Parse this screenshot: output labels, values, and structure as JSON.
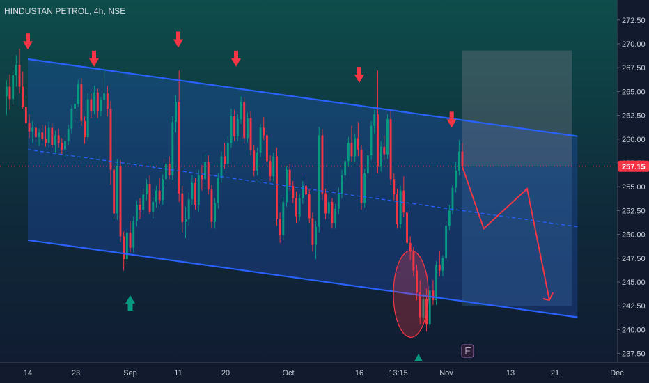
{
  "header": {
    "title": "HINDUSTAN PETROL, 4h, NSE"
  },
  "price_axis": {
    "ticks": [
      "272.50",
      "270.00",
      "267.50",
      "265.00",
      "262.50",
      "260.00",
      "257.50",
      "255.00",
      "252.50",
      "250.00",
      "247.50",
      "245.00",
      "242.50",
      "240.00",
      "237.50"
    ],
    "current_price_label": "257.15"
  },
  "time_axis": {
    "ticks": [
      "14",
      "23",
      "Sep",
      "11",
      "20",
      "Oct",
      "16",
      "13:15",
      "Nov",
      "13",
      "21",
      "Dec"
    ]
  },
  "colors": {
    "background_top": "#0e4d4b",
    "background_bottom": "#101a30",
    "channel": "#2962ff",
    "up_candle": "#089981",
    "down_candle": "#f23645",
    "marker_down": "#f23645",
    "marker_up": "#089981",
    "price_line": "#f23645"
  },
  "icons": {
    "earnings": "earnings-E-icon",
    "down_arrow": "arrow-down-icon",
    "up_arrow": "arrow-up-icon"
  },
  "chart_data": {
    "type": "candlestick",
    "symbol": "HINDUSTAN PETROL",
    "interval": "4h",
    "exchange": "NSE",
    "ylim": [
      236.5,
      274
    ],
    "current_price": 257.15,
    "channel": {
      "upper": [
        [
          "Aug 14",
          268.4
        ],
        [
          "Nov 25",
          260.3
        ]
      ],
      "lower": [
        [
          "Aug 14",
          249.4
        ],
        [
          "Nov 25",
          241.3
        ]
      ],
      "mid": [
        [
          "Aug 14",
          258.9
        ],
        [
          "Nov 25",
          250.8
        ]
      ]
    },
    "resistance_touches": [
      "Aug 14",
      "Aug 26",
      "Sep 11",
      "Sep 22",
      "Oct 16",
      "Nov 2"
    ],
    "support_touch": "Sep 1",
    "highlighted_low_zone": {
      "date_range": [
        "Oct 23",
        "Oct 29"
      ],
      "price_range": [
        239.2,
        248.3
      ]
    },
    "forecast_path": [
      [
        "Nov 4",
        257.1
      ],
      [
        "Nov 8",
        250.6
      ],
      [
        "Nov 16",
        254.8
      ],
      [
        "Nov 20",
        243.1
      ]
    ],
    "projection_box": {
      "date_range": [
        "Nov 4",
        "Nov 24"
      ],
      "price_range": [
        242.5,
        269.3
      ]
    },
    "candles": [
      [
        264.5,
        266.2,
        262.5,
        265.5
      ],
      [
        265.5,
        266.8,
        263.1,
        264.2
      ],
      [
        264.2,
        267.3,
        263.6,
        266.7
      ],
      [
        266.7,
        268.8,
        265.5,
        267.8
      ],
      [
        267.8,
        269.5,
        264.8,
        265.5
      ],
      [
        265.5,
        267.1,
        263.2,
        263.4
      ],
      [
        263.4,
        264.5,
        261.2,
        261.7
      ],
      [
        261.7,
        262.6,
        260.1,
        260.8
      ],
      [
        260.8,
        261.9,
        259.6,
        261.2
      ],
      [
        261.2,
        261.6,
        259.7,
        260.2
      ],
      [
        260.2,
        261.1,
        259.3,
        260.7
      ],
      [
        260.7,
        261.5,
        259.8,
        260.0
      ],
      [
        260.0,
        261.4,
        259.2,
        259.6
      ],
      [
        259.6,
        261.8,
        259.1,
        261.2
      ],
      [
        261.2,
        261.7,
        259.1,
        259.4
      ],
      [
        259.4,
        260.9,
        258.6,
        260.4
      ],
      [
        260.4,
        261.1,
        259.1,
        259.6
      ],
      [
        259.6,
        260.1,
        258.4,
        258.9
      ],
      [
        258.9,
        260.4,
        258.1,
        259.8
      ],
      [
        259.8,
        261.5,
        259.4,
        261.1
      ],
      [
        261.1,
        263.6,
        260.6,
        263.2
      ],
      [
        263.2,
        264.3,
        262.2,
        263.7
      ],
      [
        263.7,
        266.2,
        263.4,
        265.8
      ],
      [
        265.8,
        266.4,
        261.4,
        261.9
      ],
      [
        261.9,
        262.4,
        259.5,
        260.2
      ],
      [
        260.2,
        264.8,
        259.8,
        264.2
      ],
      [
        264.2,
        264.8,
        262.2,
        262.9
      ],
      [
        262.9,
        265.6,
        262.6,
        264.9
      ],
      [
        264.9,
        265.3,
        262.2,
        262.9
      ],
      [
        262.9,
        264.4,
        262.4,
        264.1
      ],
      [
        264.1,
        267.2,
        263.5,
        264.8
      ],
      [
        264.8,
        265.6,
        262.4,
        263.2
      ],
      [
        263.2,
        264.0,
        255.2,
        256.8
      ],
      [
        256.8,
        257.1,
        251.6,
        252.2
      ],
      [
        252.2,
        257.9,
        251.5,
        257.2
      ],
      [
        257.2,
        257.8,
        249.2,
        249.8
      ],
      [
        249.8,
        250.3,
        246.2,
        247.4
      ],
      [
        247.4,
        250.6,
        246.9,
        250.2
      ],
      [
        250.2,
        251.4,
        248.1,
        248.6
      ],
      [
        248.6,
        251.9,
        248.1,
        251.4
      ],
      [
        251.4,
        253.6,
        250.8,
        253.1
      ],
      [
        253.1,
        253.8,
        251.6,
        252.6
      ],
      [
        252.6,
        254.8,
        252.1,
        254.2
      ],
      [
        254.2,
        255.8,
        253.6,
        255.3
      ],
      [
        255.3,
        256.2,
        252.1,
        252.4
      ],
      [
        252.4,
        253.9,
        251.7,
        253.4
      ],
      [
        253.4,
        255.1,
        252.8,
        254.6
      ],
      [
        254.6,
        255.9,
        253.2,
        253.6
      ],
      [
        253.6,
        256.3,
        253.1,
        255.8
      ],
      [
        255.8,
        257.9,
        255.2,
        257.4
      ],
      [
        257.4,
        258.2,
        255.8,
        256.2
      ],
      [
        256.2,
        262.4,
        255.7,
        261.8
      ],
      [
        261.8,
        264.6,
        260.7,
        263.9
      ],
      [
        263.9,
        267.2,
        253.4,
        254.3
      ],
      [
        254.3,
        255.1,
        250.2,
        251.3
      ],
      [
        251.3,
        252.9,
        249.6,
        251.6
      ],
      [
        251.6,
        254.4,
        250.9,
        253.7
      ],
      [
        253.7,
        256.2,
        253.1,
        255.4
      ],
      [
        255.4,
        255.9,
        252.6,
        253.1
      ],
      [
        253.1,
        256.8,
        252.4,
        256.2
      ],
      [
        256.2,
        257.3,
        254.6,
        255.8
      ],
      [
        255.8,
        258.4,
        255.1,
        257.6
      ],
      [
        257.6,
        258.3,
        254.2,
        254.7
      ],
      [
        254.7,
        255.2,
        250.6,
        251.3
      ],
      [
        251.3,
        253.8,
        250.6,
        253.3
      ],
      [
        253.3,
        256.4,
        252.7,
        255.9
      ],
      [
        255.9,
        258.7,
        255.4,
        258.2
      ],
      [
        258.2,
        259.6,
        256.9,
        257.4
      ],
      [
        257.4,
        260.3,
        256.9,
        259.6
      ],
      [
        259.6,
        263.2,
        259.1,
        262.4
      ],
      [
        262.4,
        263.1,
        259.8,
        260.3
      ],
      [
        260.3,
        262.6,
        259.8,
        262.1
      ],
      [
        262.1,
        264.5,
        261.6,
        263.9
      ],
      [
        263.9,
        264.4,
        259.5,
        260.1
      ],
      [
        260.1,
        262.8,
        259.6,
        262.2
      ],
      [
        262.2,
        262.9,
        258.3,
        258.8
      ],
      [
        258.8,
        259.4,
        256.1,
        256.7
      ],
      [
        256.7,
        259.1,
        256.2,
        258.6
      ],
      [
        258.6,
        261.6,
        258.1,
        261.2
      ],
      [
        261.2,
        262.3,
        259.9,
        260.4
      ],
      [
        260.4,
        260.9,
        257.2,
        257.7
      ],
      [
        257.7,
        258.3,
        255.6,
        256.1
      ],
      [
        256.1,
        258.6,
        255.6,
        258.2
      ],
      [
        258.2,
        259.1,
        250.9,
        251.6
      ],
      [
        251.6,
        252.3,
        249.1,
        249.9
      ],
      [
        249.9,
        253.9,
        249.4,
        253.4
      ],
      [
        253.4,
        257.2,
        252.9,
        256.8
      ],
      [
        256.8,
        257.4,
        254.6,
        255.1
      ],
      [
        255.1,
        255.6,
        253.3,
        253.8
      ],
      [
        253.8,
        254.5,
        251.2,
        251.9
      ],
      [
        251.9,
        254.3,
        251.4,
        253.8
      ],
      [
        253.8,
        255.6,
        253.2,
        255.1
      ],
      [
        255.1,
        256.3,
        253.6,
        254.2
      ],
      [
        254.2,
        254.8,
        251.2,
        251.7
      ],
      [
        251.7,
        252.3,
        248.2,
        248.9
      ],
      [
        248.9,
        251.4,
        247.4,
        250.8
      ],
      [
        250.8,
        261.3,
        250.2,
        260.4
      ],
      [
        260.4,
        261.1,
        253.6,
        254.3
      ],
      [
        254.3,
        254.8,
        251.6,
        252.2
      ],
      [
        252.2,
        253.9,
        251.7,
        253.4
      ],
      [
        253.4,
        253.8,
        250.6,
        251.2
      ],
      [
        251.2,
        253.2,
        250.6,
        252.7
      ],
      [
        252.7,
        254.9,
        252.1,
        254.3
      ],
      [
        254.3,
        256.8,
        253.8,
        256.2
      ],
      [
        256.2,
        258.1,
        255.6,
        257.7
      ],
      [
        257.7,
        260.2,
        257.1,
        259.6
      ],
      [
        259.6,
        261.4,
        257.6,
        258.2
      ],
      [
        258.2,
        260.6,
        257.6,
        260.1
      ],
      [
        260.1,
        261.8,
        258.2,
        258.9
      ],
      [
        258.9,
        259.4,
        252.6,
        253.3
      ],
      [
        253.3,
        256.9,
        252.8,
        256.4
      ],
      [
        256.4,
        258.9,
        255.9,
        258.3
      ],
      [
        258.3,
        261.9,
        257.8,
        261.4
      ],
      [
        261.4,
        263.1,
        260.6,
        262.6
      ],
      [
        262.6,
        267.2,
        256.4,
        257.1
      ],
      [
        257.1,
        259.8,
        256.6,
        259.2
      ],
      [
        259.2,
        260.4,
        257.8,
        258.4
      ],
      [
        258.4,
        262.6,
        257.9,
        262.1
      ],
      [
        262.1,
        262.9,
        255.2,
        255.8
      ],
      [
        255.8,
        256.4,
        253.6,
        254.2
      ],
      [
        254.2,
        254.8,
        250.6,
        251.1
      ],
      [
        251.1,
        255.1,
        250.6,
        254.6
      ],
      [
        254.6,
        256.1,
        251.8,
        252.3
      ],
      [
        252.3,
        252.9,
        248.6,
        249.1
      ],
      [
        249.1,
        249.8,
        247.3,
        248.2
      ],
      [
        248.2,
        248.7,
        245.6,
        246.2
      ],
      [
        246.2,
        246.8,
        243.1,
        243.9
      ],
      [
        243.9,
        245.2,
        240.6,
        241.3
      ],
      [
        241.3,
        243.8,
        240.9,
        243.2
      ],
      [
        243.2,
        244.3,
        239.8,
        240.6
      ],
      [
        240.6,
        244.6,
        240.2,
        244.1
      ],
      [
        244.1,
        245.2,
        242.6,
        243.1
      ],
      [
        243.1,
        247.2,
        242.6,
        246.8
      ],
      [
        246.8,
        248.3,
        245.6,
        246.2
      ],
      [
        246.2,
        247.8,
        245.6,
        247.5
      ],
      [
        247.5,
        251.4,
        247.1,
        250.9
      ],
      [
        250.9,
        253.1,
        250.4,
        252.5
      ],
      [
        252.5,
        255.2,
        252.1,
        254.9
      ],
      [
        254.9,
        257.6,
        254.4,
        256.7
      ],
      [
        256.7,
        259.9,
        256.2,
        258.7
      ],
      [
        258.7,
        259.6,
        256.8,
        257.15
      ]
    ]
  }
}
